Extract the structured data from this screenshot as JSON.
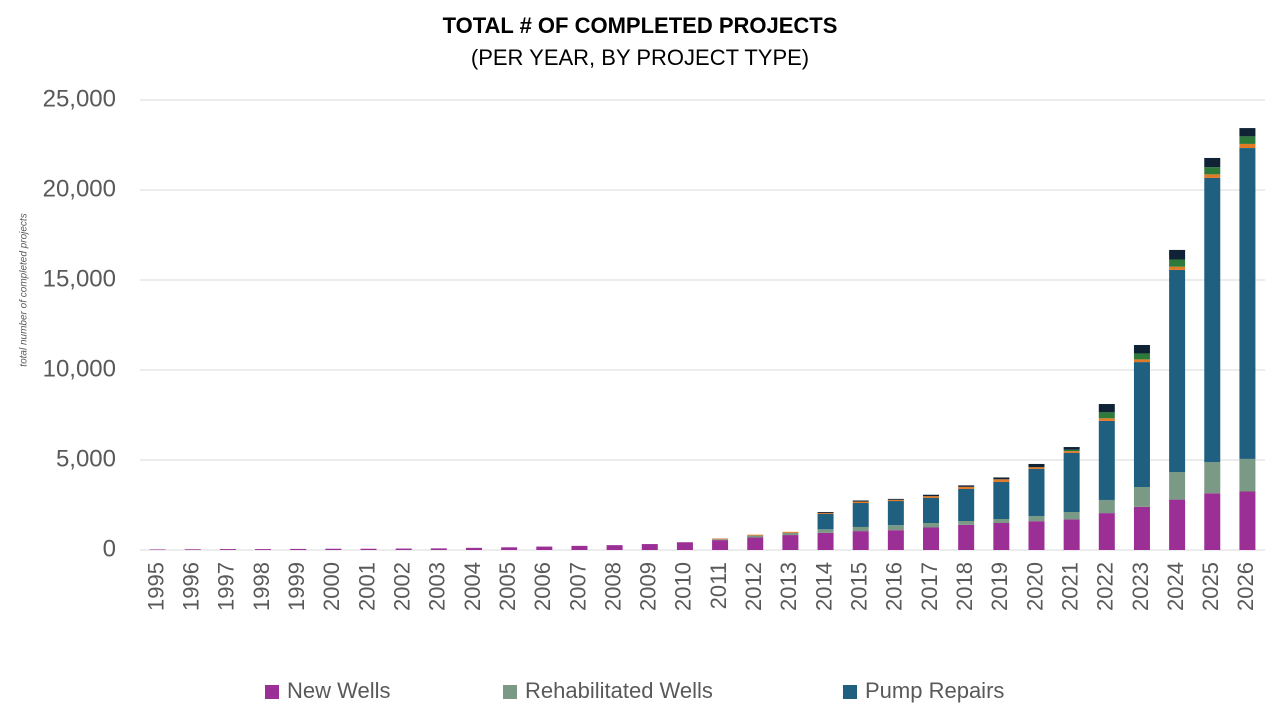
{
  "chart_data": {
    "type": "stacked-bar",
    "title": "TOTAL # OF COMPLETED PROJECTS",
    "subtitle": "(PER YEAR, BY PROJECT TYPE)",
    "y_label": "total number of completed projects",
    "categories": [
      "1995",
      "1996",
      "1997",
      "1998",
      "1999",
      "2000",
      "2001",
      "2002",
      "2003",
      "2004",
      "2005",
      "2006",
      "2007",
      "2008",
      "2009",
      "2010",
      "2011",
      "2012",
      "2013",
      "2014",
      "2015",
      "2016",
      "2017",
      "2018",
      "2019",
      "2020",
      "2021",
      "2022",
      "2023",
      "2024",
      "2025",
      "2026"
    ],
    "series": [
      {
        "name": "New Wells",
        "color": "#9b2f96",
        "values": [
          30,
          40,
          50,
          50,
          60,
          70,
          70,
          80,
          90,
          120,
          150,
          190,
          230,
          270,
          330,
          430,
          550,
          700,
          830,
          950,
          1050,
          1100,
          1250,
          1400,
          1500,
          1600,
          1700,
          2050,
          2400,
          2800,
          3150,
          3250
        ]
      },
      {
        "name": "Rehabilitated Wells",
        "color": "#7a9a85",
        "values": [
          0,
          0,
          0,
          0,
          0,
          0,
          0,
          0,
          0,
          0,
          0,
          0,
          0,
          0,
          0,
          0,
          50,
          100,
          120,
          200,
          230,
          280,
          250,
          210,
          220,
          290,
          410,
          730,
          1100,
          1530,
          1740,
          1810
        ]
      },
      {
        "name": "Pump Repairs",
        "color": "#1f5f80",
        "values": [
          0,
          0,
          0,
          0,
          0,
          0,
          0,
          0,
          0,
          0,
          0,
          0,
          0,
          0,
          0,
          0,
          0,
          0,
          0,
          850,
          1330,
          1340,
          1390,
          1780,
          2060,
          2610,
          3280,
          4390,
          6940,
          11230,
          15780,
          17270
        ]
      },
      {
        "color": "#e07b28",
        "values": [
          0,
          0,
          0,
          0,
          0,
          0,
          0,
          0,
          0,
          0,
          0,
          0,
          0,
          0,
          0,
          0,
          40,
          50,
          60,
          60,
          80,
          70,
          100,
          120,
          150,
          100,
          100,
          150,
          150,
          180,
          200,
          230
        ]
      },
      {
        "color": "#2e7a3a",
        "values": [
          0,
          0,
          0,
          0,
          0,
          0,
          0,
          0,
          0,
          0,
          0,
          0,
          0,
          0,
          0,
          0,
          0,
          0,
          0,
          0,
          0,
          0,
          0,
          0,
          0,
          0,
          80,
          330,
          330,
          400,
          400,
          420
        ]
      },
      {
        "color": "#0f2236",
        "values": [
          0,
          0,
          0,
          0,
          0,
          0,
          0,
          0,
          0,
          0,
          0,
          0,
          0,
          0,
          0,
          0,
          0,
          0,
          0,
          50,
          60,
          50,
          80,
          80,
          100,
          180,
          150,
          460,
          470,
          530,
          510,
          460
        ]
      }
    ],
    "ylim": [
      0,
      25000
    ],
    "yticks": [
      0,
      {
        "value": 5000,
        "label": "5,000"
      },
      {
        "value": 10000,
        "label": "10,000"
      },
      {
        "value": 15000,
        "label": "15,000"
      },
      {
        "value": 20000,
        "label": "20,000"
      },
      {
        "value": 25000,
        "label": "25,000"
      }
    ],
    "grid": true,
    "legend": "bottom"
  }
}
